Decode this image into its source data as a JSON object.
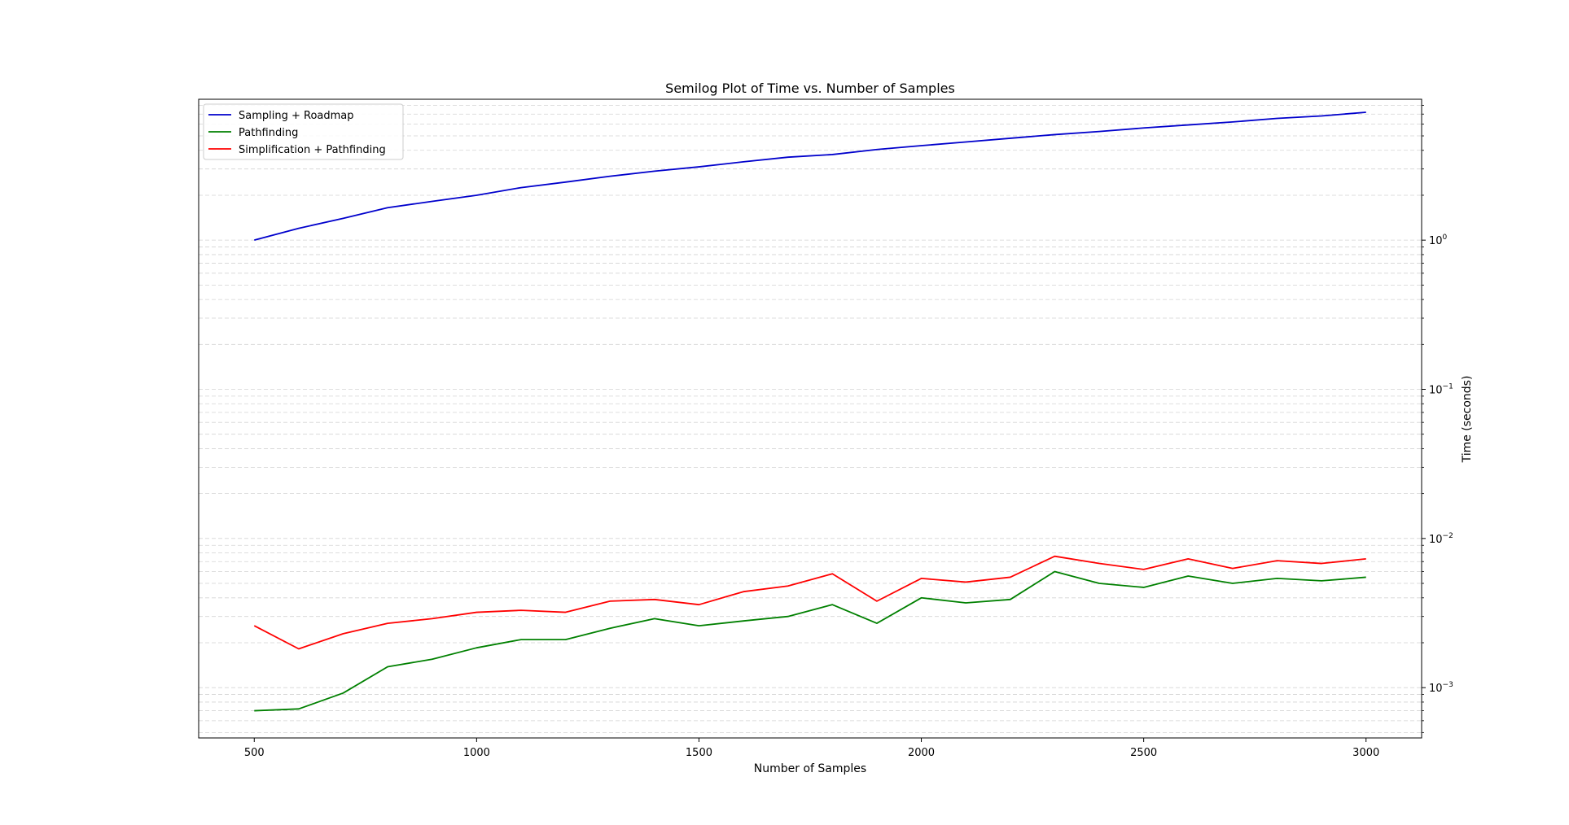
{
  "chart_data": {
    "type": "line",
    "title": "Semilog Plot of Time vs. Number of Samples",
    "xlabel": "Number of Samples",
    "ylabel": "Time (seconds)",
    "y_scale": "log",
    "y_axis_side": "right",
    "grid": "y-major-and-minor-dashed",
    "legend_position": "top-left",
    "xlim": [
      375,
      3125
    ],
    "ylim": [
      0.00046,
      8.8
    ],
    "x_ticks": [
      500,
      1000,
      1500,
      2000,
      2500,
      3000
    ],
    "x_tick_labels": [
      "500",
      "1000",
      "1500",
      "2000",
      "2500",
      "3000"
    ],
    "y_ticks": [
      0.001,
      0.01,
      0.1,
      1
    ],
    "y_tick_labels": [
      {
        "base": "10",
        "exp": "−3"
      },
      {
        "base": "10",
        "exp": "−2"
      },
      {
        "base": "10",
        "exp": "−1"
      },
      {
        "base": "10",
        "exp": "0"
      }
    ],
    "x": [
      500,
      600,
      700,
      800,
      900,
      1000,
      1100,
      1200,
      1300,
      1400,
      1500,
      1600,
      1700,
      1800,
      1900,
      2000,
      2100,
      2200,
      2300,
      2400,
      2500,
      2600,
      2700,
      2800,
      2900,
      3000
    ],
    "series": [
      {
        "name": "Sampling + Roadmap",
        "color": "#0000cc",
        "values": [
          1.0,
          1.2,
          1.4,
          1.65,
          1.82,
          2.0,
          2.25,
          2.45,
          2.68,
          2.9,
          3.1,
          3.35,
          3.6,
          3.75,
          4.05,
          4.3,
          4.55,
          4.82,
          5.1,
          5.35,
          5.65,
          5.92,
          6.2,
          6.55,
          6.8,
          7.2
        ]
      },
      {
        "name": "Pathfinding",
        "color": "#008000",
        "values": [
          0.0007,
          0.00072,
          0.00092,
          0.00138,
          0.00155,
          0.00185,
          0.0021,
          0.0021,
          0.0025,
          0.0029,
          0.0026,
          0.0028,
          0.003,
          0.0036,
          0.0027,
          0.004,
          0.0037,
          0.0039,
          0.006,
          0.005,
          0.0047,
          0.0056,
          0.005,
          0.0054,
          0.0052,
          0.0055
        ]
      },
      {
        "name": "Simplification + Pathfinding",
        "color": "#ff0000",
        "values": [
          0.0026,
          0.00182,
          0.0023,
          0.0027,
          0.0029,
          0.0032,
          0.0033,
          0.0032,
          0.0038,
          0.0039,
          0.0036,
          0.0044,
          0.0048,
          0.0058,
          0.0038,
          0.0054,
          0.0051,
          0.0055,
          0.0076,
          0.0068,
          0.0062,
          0.0073,
          0.0063,
          0.0071,
          0.0068,
          0.0073
        ]
      }
    ]
  }
}
